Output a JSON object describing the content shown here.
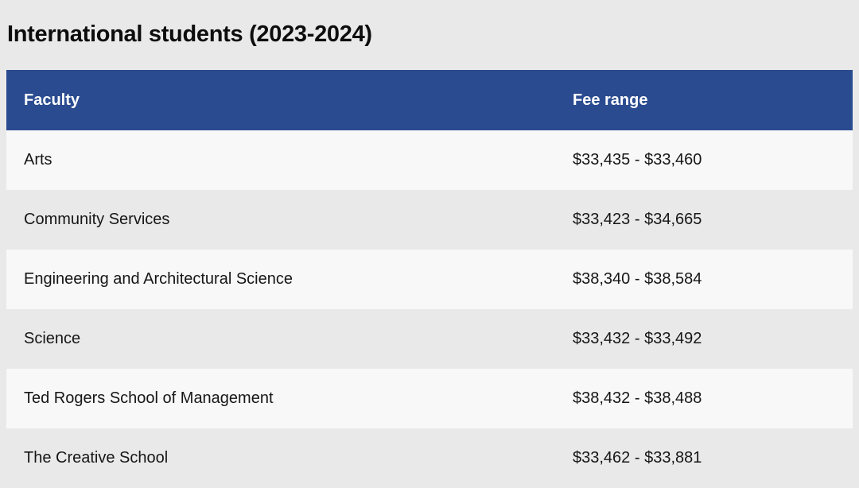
{
  "page": {
    "title": "International students (2023-2024)"
  },
  "colors": {
    "page_bg": "#e9e9e9",
    "header_bg": "#2a4b90",
    "header_text": "#ffffff",
    "row_light": "#f8f8f8",
    "row_dark": "#e9e9e9"
  },
  "chart_data": {
    "type": "table",
    "title": "International students (2023-2024)",
    "columns": [
      "Faculty",
      "Fee range"
    ],
    "rows": [
      [
        "Arts",
        "$33,435 - $33,460"
      ],
      [
        "Community Services",
        "$33,423 - $34,665"
      ],
      [
        "Engineering and Architectural Science",
        "$38,340 - $38,584"
      ],
      [
        "Science",
        "$33,432 - $33,492"
      ],
      [
        "Ted Rogers School of Management",
        "$38,432 - $38,488"
      ],
      [
        "The Creative School",
        "$33,462 - $33,881"
      ]
    ]
  }
}
